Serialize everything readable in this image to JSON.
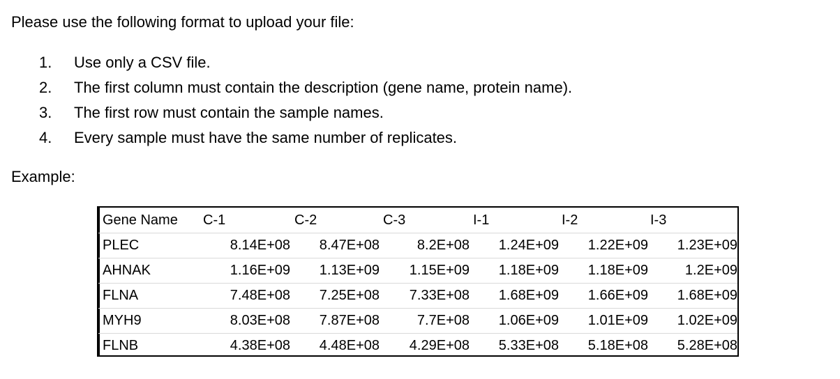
{
  "intro": "Please use the following format to upload your file:",
  "rules": [
    {
      "num": "1.",
      "text": "Use only a CSV file."
    },
    {
      "num": "2.",
      "text": "The first column must contain the description (gene name, protein name)."
    },
    {
      "num": "3.",
      "text": "The first row must contain the sample names."
    },
    {
      "num": "4.",
      "text": "Every sample must have the same number of replicates."
    }
  ],
  "example_label": "Example:",
  "table": {
    "headers": [
      "Gene Name",
      "C-1",
      "C-2",
      "C-3",
      "I-1",
      "I-2",
      "I-3"
    ],
    "rows": [
      {
        "name": "PLEC",
        "values": [
          "8.14E+08",
          "8.47E+08",
          "8.2E+08",
          "1.24E+09",
          "1.22E+09",
          "1.23E+09"
        ]
      },
      {
        "name": "AHNAK",
        "values": [
          "1.16E+09",
          "1.13E+09",
          "1.15E+09",
          "1.18E+09",
          "1.18E+09",
          "1.2E+09"
        ]
      },
      {
        "name": "FLNA",
        "values": [
          "7.48E+08",
          "7.25E+08",
          "7.33E+08",
          "1.68E+09",
          "1.66E+09",
          "1.68E+09"
        ]
      },
      {
        "name": "MYH9",
        "values": [
          "8.03E+08",
          "7.87E+08",
          "7.7E+08",
          "1.06E+09",
          "1.01E+09",
          "1.02E+09"
        ]
      },
      {
        "name": "FLNB",
        "values": [
          "4.38E+08",
          "4.48E+08",
          "4.29E+08",
          "5.33E+08",
          "5.18E+08",
          "5.28E+08"
        ]
      }
    ]
  }
}
